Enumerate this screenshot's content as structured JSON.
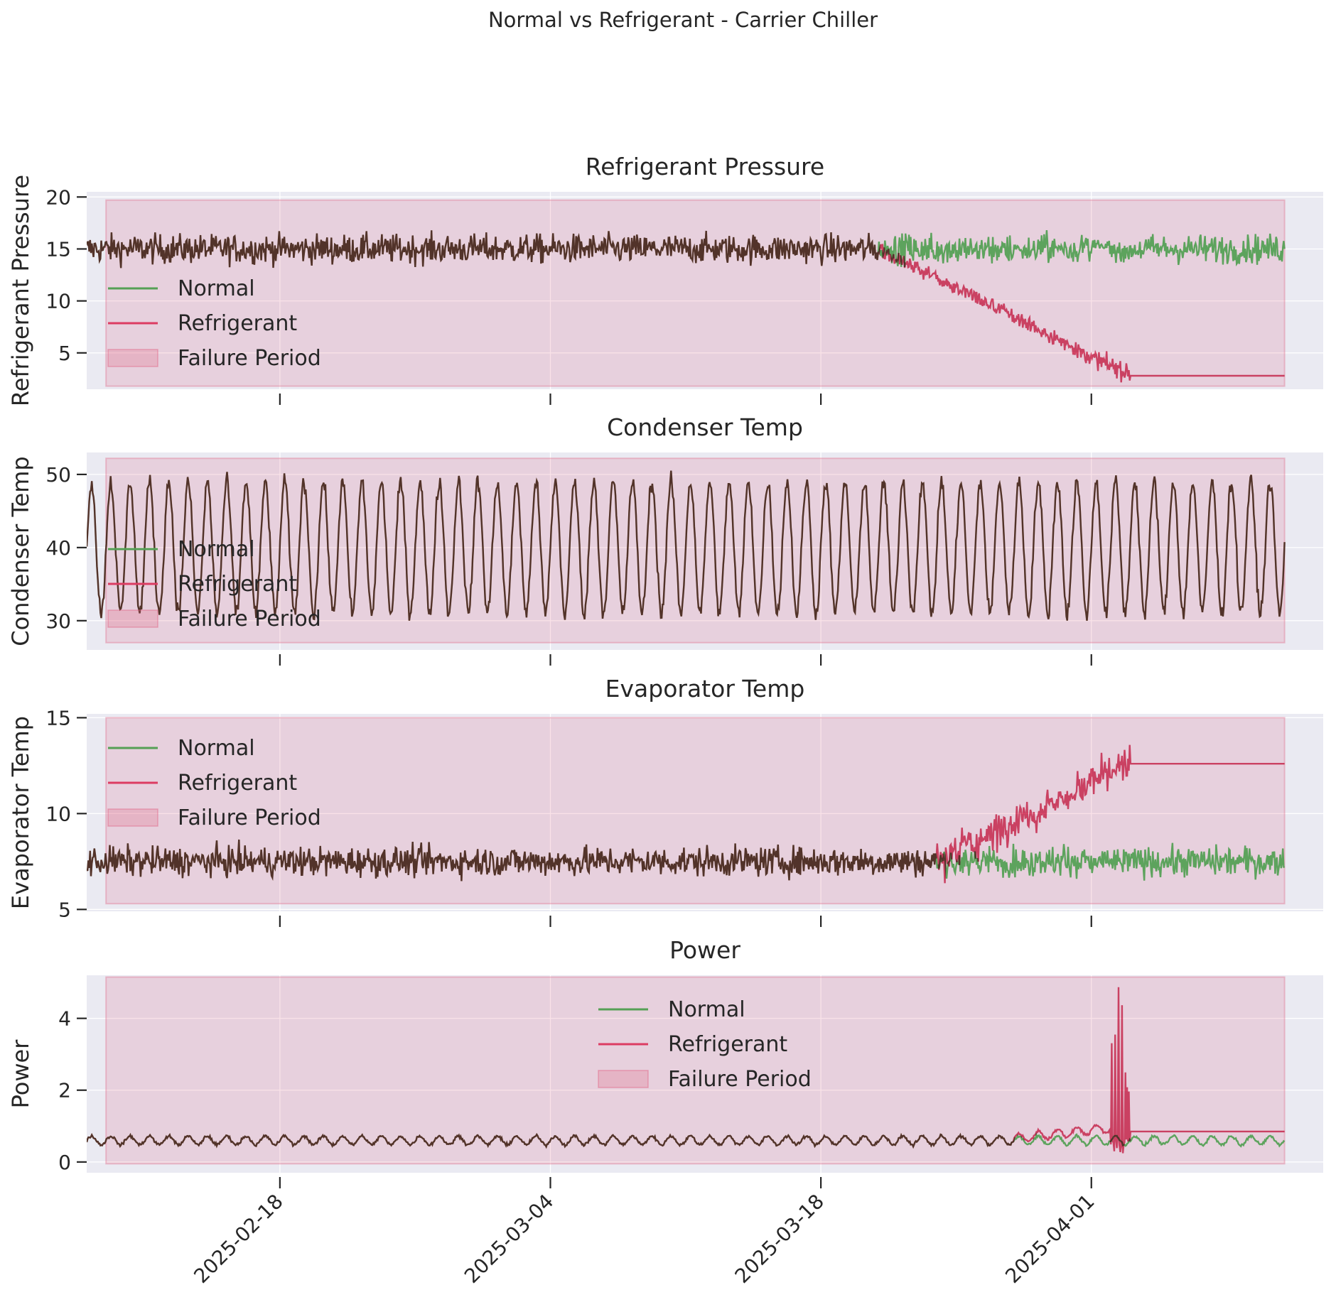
{
  "figure": {
    "suptitle": "Normal vs Refrigerant - Carrier Chiller"
  },
  "colors": {
    "normal": "#55a055",
    "refrigerant": "#dc3c62",
    "failure_fill": "#e06080",
    "overlap": "#b43a44"
  },
  "chart_data": [
    {
      "type": "line",
      "title": "Refrigerant Pressure",
      "ylabel": "Refrigerant Pressure",
      "x_range": [
        "2025-02-08",
        "2025-04-13"
      ],
      "ylim": [
        1.5,
        20.5
      ],
      "yticks": [
        5,
        10,
        15,
        20
      ],
      "xticks": [
        "2025-02-18",
        "2025-03-04",
        "2025-03-18",
        "2025-04-01"
      ],
      "show_xtick_labels": false,
      "grid": true,
      "legend": "left-middle",
      "failure_period": {
        "start": "2025-02-09",
        "end": "2025-04-11",
        "y_range": [
          1.8,
          19.7
        ]
      },
      "series": [
        {
          "name": "Normal",
          "base": 15.0,
          "noise": 1.0,
          "start": "2025-02-08",
          "end": "2025-04-11"
        },
        {
          "name": "Refrigerant",
          "base": 15.0,
          "noise": 1.0,
          "start": "2025-02-08",
          "end": "2025-04-11",
          "segments": [
            {
              "from": "2025-02-08",
              "to": "2025-03-21",
              "level": 15.0,
              "noise": 1.0
            },
            {
              "from": "2025-03-21",
              "to": "2025-04-03",
              "level_from": 15.0,
              "level_to": 2.8,
              "noise": 0.6
            },
            {
              "from": "2025-04-03",
              "to": "2025-04-11",
              "level": 2.8,
              "noise": 0
            }
          ]
        }
      ]
    },
    {
      "type": "line",
      "title": "Condenser Temp",
      "ylabel": "Condenser Temp",
      "x_range": [
        "2025-02-08",
        "2025-04-13"
      ],
      "ylim": [
        26,
        53
      ],
      "yticks": [
        30,
        40,
        50
      ],
      "xticks": [
        "2025-02-18",
        "2025-03-04",
        "2025-03-18",
        "2025-04-01"
      ],
      "show_xtick_labels": false,
      "grid": true,
      "legend": "left-middle",
      "failure_period": {
        "start": "2025-02-09",
        "end": "2025-04-11",
        "y_range": [
          27,
          52.2
        ]
      },
      "series": [
        {
          "name": "Normal",
          "base": 40.0,
          "daily_amplitude": 9.0,
          "noise": 0.8,
          "start": "2025-02-08",
          "end": "2025-04-11"
        },
        {
          "name": "Refrigerant",
          "base": 40.0,
          "daily_amplitude": 9.0,
          "noise": 0.8,
          "start": "2025-02-08",
          "end": "2025-04-11"
        }
      ]
    },
    {
      "type": "line",
      "title": "Evaporator Temp",
      "ylabel": "Evaporator Temp",
      "x_range": [
        "2025-02-08",
        "2025-04-13"
      ],
      "ylim": [
        4.9,
        15.2
      ],
      "yticks": [
        5,
        10,
        15
      ],
      "xticks": [
        "2025-02-18",
        "2025-03-04",
        "2025-03-18",
        "2025-04-01"
      ],
      "show_xtick_labels": false,
      "grid": true,
      "legend": "top-left",
      "failure_period": {
        "start": "2025-02-09",
        "end": "2025-04-11",
        "y_range": [
          5.3,
          15.0
        ]
      },
      "series": [
        {
          "name": "Normal",
          "base": 7.5,
          "noise": 0.55,
          "start": "2025-02-08",
          "end": "2025-04-11"
        },
        {
          "name": "Refrigerant",
          "base": 7.5,
          "noise": 0.55,
          "start": "2025-02-08",
          "end": "2025-04-11",
          "segments": [
            {
              "from": "2025-02-08",
              "to": "2025-03-24",
              "level": 7.5,
              "noise": 0.55
            },
            {
              "from": "2025-03-24",
              "to": "2025-04-03",
              "level_from": 7.5,
              "level_to": 12.6,
              "noise": 0.7
            },
            {
              "from": "2025-04-03",
              "to": "2025-04-11",
              "level": 12.6,
              "noise": 0
            }
          ]
        }
      ]
    },
    {
      "type": "line",
      "title": "Power",
      "ylabel": "Power",
      "x_range": [
        "2025-02-08",
        "2025-04-13"
      ],
      "ylim": [
        -0.3,
        5.2
      ],
      "yticks": [
        0,
        2,
        4
      ],
      "xticks": [
        "2025-02-18",
        "2025-03-04",
        "2025-03-18",
        "2025-04-01"
      ],
      "show_xtick_labels": true,
      "grid": true,
      "legend": "top-center",
      "failure_period": {
        "start": "2025-02-09",
        "end": "2025-04-11",
        "y_range": [
          -0.05,
          5.15
        ]
      },
      "series": [
        {
          "name": "Normal",
          "base": 0.6,
          "daily_amplitude": 0.12,
          "noise": 0.03,
          "start": "2025-02-08",
          "end": "2025-04-11"
        },
        {
          "name": "Refrigerant",
          "base": 0.6,
          "daily_amplitude": 0.12,
          "noise": 0.03,
          "start": "2025-02-08",
          "end": "2025-04-11",
          "segments": [
            {
              "from": "2025-02-08",
              "to": "2025-03-28",
              "level": 0.6
            },
            {
              "from": "2025-03-28",
              "to": "2025-04-02",
              "level_from": 0.65,
              "level_to": 0.95
            },
            {
              "from": "2025-04-02",
              "to": "2025-04-03",
              "spike_max": 4.9,
              "spike_min": 0.15
            },
            {
              "from": "2025-04-03",
              "to": "2025-04-11",
              "level": 0.85,
              "noise": 0
            }
          ]
        }
      ]
    }
  ],
  "legend_labels": {
    "normal": "Normal",
    "refrigerant": "Refrigerant",
    "failure": "Failure Period"
  }
}
